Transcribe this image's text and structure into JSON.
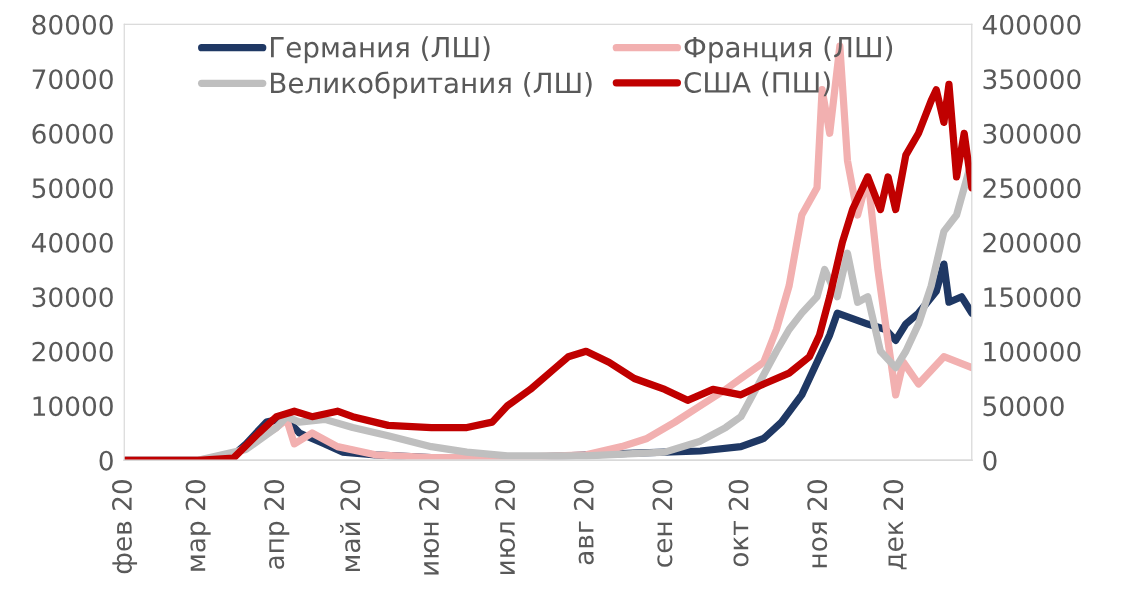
{
  "chart_data": {
    "type": "line",
    "xlim": [
      "2020-02-01",
      "2020-12-31"
    ],
    "xticks": [
      {
        "value": "2020-02-01",
        "label": "фев 20"
      },
      {
        "value": "2020-03-01",
        "label": "мар 20"
      },
      {
        "value": "2020-04-01",
        "label": "апр 20"
      },
      {
        "value": "2020-05-01",
        "label": "май 20"
      },
      {
        "value": "2020-06-01",
        "label": "июн 20"
      },
      {
        "value": "2020-07-01",
        "label": "июл 20"
      },
      {
        "value": "2020-08-01",
        "label": "авг 20"
      },
      {
        "value": "2020-09-01",
        "label": "сен 20"
      },
      {
        "value": "2020-10-01",
        "label": "окт 20"
      },
      {
        "value": "2020-11-01",
        "label": "ноя 20"
      },
      {
        "value": "2020-12-01",
        "label": "дек 20"
      }
    ],
    "ylim": [
      0,
      80000
    ],
    "yticks": [
      0,
      10000,
      20000,
      30000,
      40000,
      50000,
      60000,
      70000,
      80000
    ],
    "y2lim": [
      0,
      400000
    ],
    "y2ticks": [
      0,
      50000,
      100000,
      150000,
      200000,
      250000,
      300000,
      350000,
      400000
    ],
    "legend": "top",
    "grid": false,
    "marker": "none",
    "line_style": "solid",
    "series": [
      {
        "name": "Германия (ЛШ)",
        "color": "#1f3864",
        "x": [
          "2020-02-01",
          "2020-03-01",
          "2020-03-14",
          "2020-03-20",
          "2020-03-28",
          "2020-04-02",
          "2020-04-04",
          "2020-04-10",
          "2020-04-15",
          "2020-04-20",
          "2020-04-27",
          "2020-05-10",
          "2020-06-01",
          "2020-07-01",
          "2020-08-20",
          "2020-09-01",
          "2020-09-15",
          "2020-10-01",
          "2020-10-10",
          "2020-10-17",
          "2020-10-25",
          "2020-10-31",
          "2020-11-05",
          "2020-11-08",
          "2020-11-14",
          "2020-11-20",
          "2020-11-27",
          "2020-12-01",
          "2020-12-05",
          "2020-12-10",
          "2020-12-17",
          "2020-12-20",
          "2020-12-22",
          "2020-12-27",
          "2020-12-31"
        ],
        "values": [
          0,
          0,
          500,
          3000,
          7000,
          7500,
          8000,
          5000,
          4000,
          3000,
          1500,
          1000,
          500,
          400,
          1300,
          1500,
          1700,
          2500,
          4000,
          7000,
          12000,
          18000,
          23000,
          27000,
          26000,
          25000,
          24000,
          22000,
          25000,
          27000,
          31000,
          36000,
          29000,
          30000,
          27000
        ]
      },
      {
        "name": "Франция (ЛШ)",
        "color": "#f2b0b0",
        "x": [
          "2020-02-01",
          "2020-03-01",
          "2020-03-15",
          "2020-03-25",
          "2020-04-01",
          "2020-04-05",
          "2020-04-08",
          "2020-04-15",
          "2020-04-25",
          "2020-05-10",
          "2020-06-01",
          "2020-07-01",
          "2020-08-01",
          "2020-08-15",
          "2020-08-25",
          "2020-09-05",
          "2020-09-15",
          "2020-09-25",
          "2020-10-01",
          "2020-10-10",
          "2020-10-15",
          "2020-10-20",
          "2020-10-25",
          "2020-10-31",
          "2020-11-02",
          "2020-11-05",
          "2020-11-09",
          "2020-11-12",
          "2020-11-16",
          "2020-11-20",
          "2020-11-24",
          "2020-11-27",
          "2020-12-01",
          "2020-12-04",
          "2020-12-10",
          "2020-12-20",
          "2020-12-31"
        ],
        "values": [
          0,
          0,
          1000,
          4000,
          6000,
          7500,
          3000,
          5000,
          2500,
          1000,
          500,
          500,
          1000,
          2500,
          4000,
          7000,
          10000,
          13000,
          15000,
          18000,
          24000,
          32000,
          45000,
          50000,
          68000,
          60000,
          76000,
          55000,
          45000,
          52000,
          35000,
          25000,
          12000,
          18000,
          14000,
          19000,
          17000
        ]
      },
      {
        "name": "Великобритания (ЛШ)",
        "color": "#bfbfbf",
        "x": [
          "2020-02-01",
          "2020-03-01",
          "2020-03-20",
          "2020-04-01",
          "2020-04-05",
          "2020-04-10",
          "2020-04-20",
          "2020-05-01",
          "2020-05-15",
          "2020-06-01",
          "2020-06-15",
          "2020-07-01",
          "2020-08-01",
          "2020-09-01",
          "2020-09-15",
          "2020-09-25",
          "2020-10-01",
          "2020-10-08",
          "2020-10-15",
          "2020-10-20",
          "2020-10-25",
          "2020-10-31",
          "2020-11-03",
          "2020-11-08",
          "2020-11-12",
          "2020-11-16",
          "2020-11-20",
          "2020-11-25",
          "2020-12-01",
          "2020-12-05",
          "2020-12-10",
          "2020-12-15",
          "2020-12-20",
          "2020-12-25",
          "2020-12-31"
        ],
        "values": [
          0,
          0,
          2000,
          6000,
          8000,
          7000,
          7500,
          6000,
          4500,
          2500,
          1500,
          800,
          800,
          1500,
          3500,
          6000,
          8000,
          14000,
          20000,
          24000,
          27000,
          30000,
          35000,
          30000,
          38000,
          29000,
          30000,
          20000,
          17000,
          20000,
          25000,
          32000,
          42000,
          45000,
          55000
        ]
      },
      {
        "name": "США (ПШ)",
        "color": "#c00000",
        "axis": "y2",
        "x": [
          "2020-02-01",
          "2020-03-01",
          "2020-03-15",
          "2020-03-25",
          "2020-04-01",
          "2020-04-08",
          "2020-04-15",
          "2020-04-25",
          "2020-05-01",
          "2020-05-15",
          "2020-06-01",
          "2020-06-15",
          "2020-06-25",
          "2020-07-01",
          "2020-07-10",
          "2020-07-20",
          "2020-07-25",
          "2020-08-01",
          "2020-08-10",
          "2020-08-20",
          "2020-09-01",
          "2020-09-10",
          "2020-09-20",
          "2020-10-01",
          "2020-10-10",
          "2020-10-20",
          "2020-10-28",
          "2020-11-01",
          "2020-11-05",
          "2020-11-10",
          "2020-11-14",
          "2020-11-20",
          "2020-11-25",
          "2020-11-28",
          "2020-12-01",
          "2020-12-05",
          "2020-12-10",
          "2020-12-15",
          "2020-12-17",
          "2020-12-20",
          "2020-12-22",
          "2020-12-25",
          "2020-12-28",
          "2020-12-31"
        ],
        "values": [
          0,
          0,
          2000,
          25000,
          40000,
          45000,
          40000,
          45000,
          40000,
          32000,
          30000,
          30000,
          35000,
          50000,
          65000,
          85000,
          95000,
          100000,
          90000,
          75000,
          65000,
          55000,
          65000,
          60000,
          70000,
          80000,
          95000,
          115000,
          150000,
          200000,
          230000,
          260000,
          230000,
          260000,
          230000,
          280000,
          300000,
          330000,
          340000,
          310000,
          345000,
          260000,
          300000,
          250000
        ]
      }
    ]
  }
}
